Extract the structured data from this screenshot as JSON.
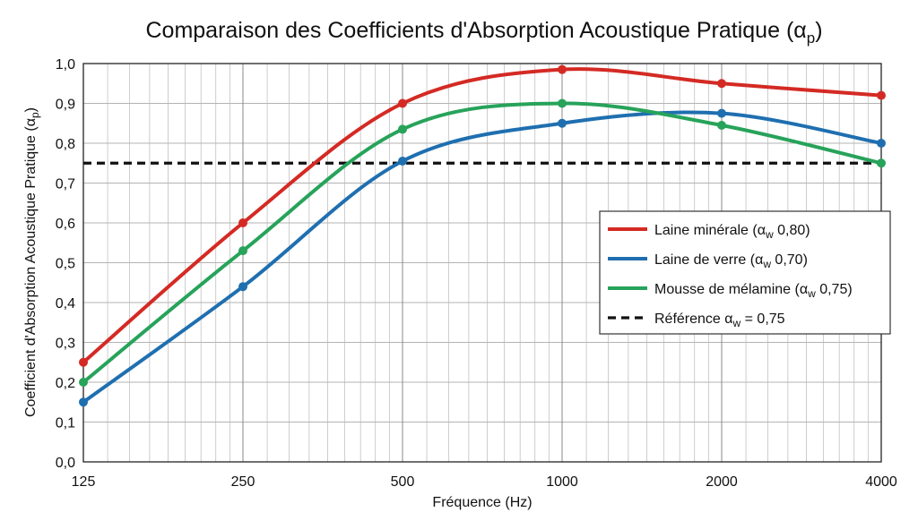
{
  "chart_data": {
    "type": "line",
    "title": "Comparaison des Coefficients d'Absorption Acoustique Pratique (α",
    "title_sub": "p",
    "title_close": ")",
    "xlabel": "Fréquence (Hz)",
    "ylabel": "Coefficient d'Absorption Acoustique Pratique (α",
    "ylabel_sub": "p",
    "ylabel_close": ")",
    "x": [
      125,
      250,
      500,
      1000,
      2000,
      4000
    ],
    "x_tick_labels": [
      "125",
      "250",
      "500",
      "1000",
      "2000",
      "4000"
    ],
    "x_scale": "log",
    "xlim": [
      125,
      4000
    ],
    "ylim": [
      0,
      1
    ],
    "y_ticks": [
      0,
      0.1,
      0.2,
      0.3,
      0.4,
      0.5,
      0.6,
      0.7,
      0.8,
      0.9,
      1.0
    ],
    "y_tick_labels": [
      "0,0",
      "0,1",
      "0,2",
      "0,3",
      "0,4",
      "0,5",
      "0,6",
      "0,7",
      "0,8",
      "0,9",
      "1,0"
    ],
    "grid": true,
    "legend_position": "right",
    "series": [
      {
        "name_pre": "Laine minérale (α",
        "name_sub": "w",
        "name_post": " 0,80)",
        "color": "#d42a24",
        "values": [
          0.25,
          0.6,
          0.9,
          0.985,
          0.95,
          0.92
        ]
      },
      {
        "name_pre": "Laine de verre (α",
        "name_sub": "w",
        "name_post": " 0,70)",
        "color": "#1f6fb0",
        "values": [
          0.15,
          0.44,
          0.755,
          0.85,
          0.875,
          0.8
        ]
      },
      {
        "name_pre": "Mousse de mélamine (α",
        "name_sub": "w",
        "name_post": " 0,75)",
        "color": "#27a35a",
        "values": [
          0.2,
          0.53,
          0.835,
          0.9,
          0.845,
          0.75
        ]
      }
    ],
    "reference": {
      "name_pre": "Référence α",
      "name_sub": "w",
      "name_post": " = 0,75",
      "value": 0.75,
      "color": "#111111",
      "style": "dashed"
    }
  }
}
